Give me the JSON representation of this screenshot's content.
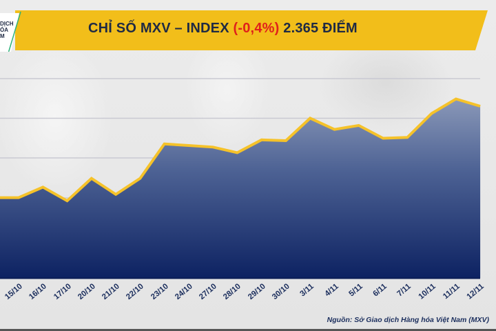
{
  "header": {
    "title_prefix": "CHỈ SỐ MXV – INDEX ",
    "title_change": "(-0,4%)",
    "title_suffix": " 2.365 ĐIỂM",
    "logo_lines": [
      "DỊCH",
      "ÓA",
      "M"
    ]
  },
  "colors": {
    "banner": "#f2be1a",
    "title_text": "#1f2a44",
    "negative": "#e0201b",
    "line": "#f5c22a",
    "fill_top": "#8a98b8",
    "fill_bottom": "#0d2262",
    "label": "#1c2f5e"
  },
  "footer": {
    "source": "Nguồn: Sở Giao dịch Hàng hóa Việt Nam (MXV)"
  },
  "chart_data": {
    "type": "area",
    "title": "CHỈ SỐ MXV – INDEX (-0,4%) 2.365 ĐIỂM",
    "xlabel": "",
    "ylabel": "",
    "categories": [
      "15/10",
      "16/10",
      "17/10",
      "20/10",
      "21/10",
      "22/10",
      "23/10",
      "24/10",
      "27/10",
      "28/10",
      "29/10",
      "30/10",
      "3/11",
      "4/11",
      "5/11",
      "6/11",
      "7/11",
      "10/11",
      "11/11",
      "12/11"
    ],
    "series": [
      {
        "name": "MXV-Index",
        "values": [
          2251,
          2264,
          2247,
          2275,
          2255,
          2275,
          2318,
          2316,
          2314,
          2307,
          2323,
          2322,
          2350,
          2336,
          2341,
          2325,
          2326,
          2356,
          2374,
          2365
        ]
      }
    ],
    "grid": true,
    "y_axis_labels_visible": false,
    "legend": "none",
    "annotations": [
      "(-0,4%)",
      "2.365 ĐIỂM"
    ],
    "source": "Nguồn: Sở Giao dịch Hàng hóa Việt Nam (MXV)"
  }
}
